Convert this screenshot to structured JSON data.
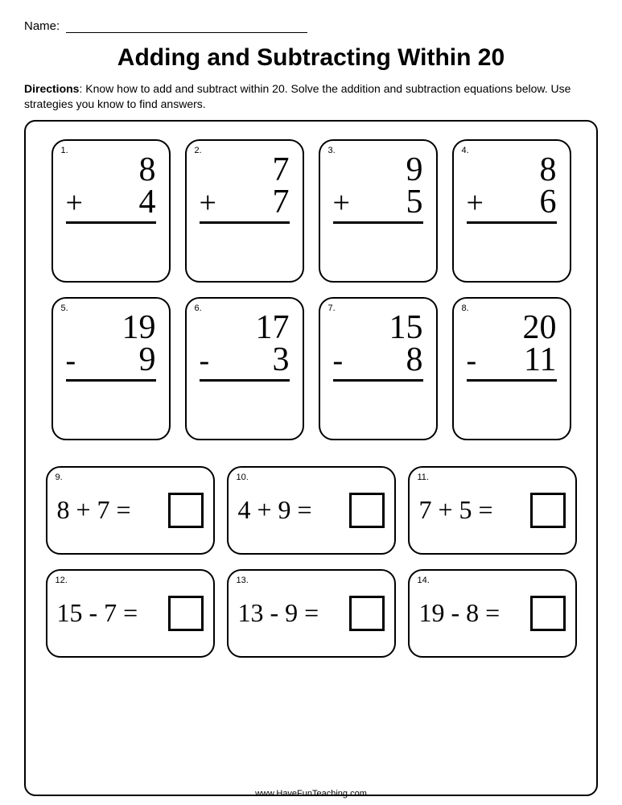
{
  "name_label": "Name:",
  "title": "Adding and Subtracting Within 20",
  "directions_label": "Directions",
  "directions_text": ": Know how to add and subtract within 20.  Solve the addition and subtraction equations below. Use strategies you know to find answers.",
  "vertical_rows": [
    [
      {
        "n": "1.",
        "a": "8",
        "op": "+",
        "b": "4"
      },
      {
        "n": "2.",
        "a": "7",
        "op": "+",
        "b": "7"
      },
      {
        "n": "3.",
        "a": "9",
        "op": "+",
        "b": "5"
      },
      {
        "n": "4.",
        "a": "8",
        "op": "+",
        "b": "6"
      }
    ],
    [
      {
        "n": "5.",
        "a": "19",
        "op": "-",
        "b": "9"
      },
      {
        "n": "6.",
        "a": "17",
        "op": "-",
        "b": "3"
      },
      {
        "n": "7.",
        "a": "15",
        "op": "-",
        "b": "8"
      },
      {
        "n": "8.",
        "a": "20",
        "op": "-",
        "b": "11"
      }
    ]
  ],
  "horizontal_rows": [
    [
      {
        "n": "9.",
        "eq": "8 + 7 ="
      },
      {
        "n": "10.",
        "eq": "4 + 9 ="
      },
      {
        "n": "11.",
        "eq": "7 + 5 ="
      }
    ],
    [
      {
        "n": "12.",
        "eq": "15 - 7 ="
      },
      {
        "n": "13.",
        "eq": "13 - 9 ="
      },
      {
        "n": "14.",
        "eq": "19 - 8 ="
      }
    ]
  ],
  "footer": "www.HaveFunTeaching.com"
}
